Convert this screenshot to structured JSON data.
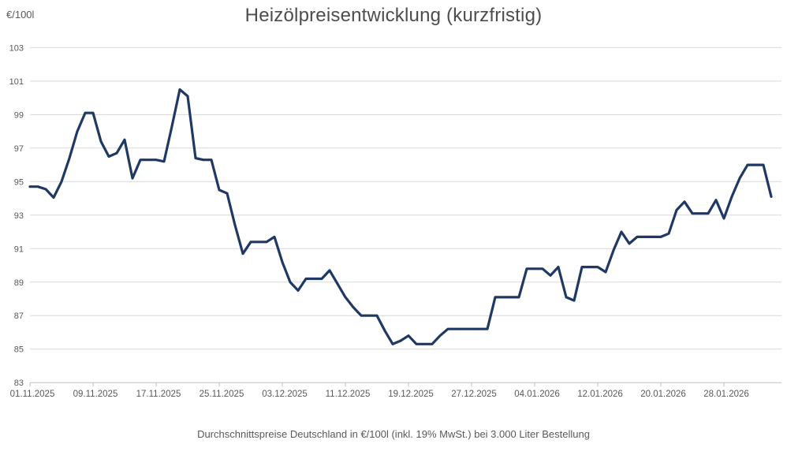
{
  "header": {
    "title": "Heizölpreisentwicklung (kurzfristig)",
    "y_axis_unit": "€/100l"
  },
  "footer": {
    "subtitle": "Durchschnittspreise Deutschland in €/100l (inkl. 19% MwSt.) bei 3.000 Liter Bestellung"
  },
  "chart_data": {
    "type": "line",
    "title": "Heizölpreisentwicklung (kurzfristig)",
    "ylabel": "€/100l",
    "x_start_date": "01.11.2025",
    "x_end_date": "03.02.2026",
    "x_interval": "daily",
    "x_tick_every_n_days": 8,
    "x_tick_labels": [
      "01.11.2025",
      "09.11.2025",
      "17.11.2025",
      "25.11.2025",
      "03.12.2025",
      "11.12.2025",
      "19.12.2025",
      "27.12.2025",
      "04.01.2026",
      "12.01.2026",
      "20.01.2026",
      "28.01.2026"
    ],
    "y_ticks": [
      103,
      101,
      99,
      97,
      95,
      93,
      91,
      89,
      87,
      85,
      83
    ],
    "ylim": [
      83,
      103
    ],
    "grid": "horizontal",
    "legend": "none",
    "values": [
      94.7,
      94.7,
      94.55,
      94.05,
      95.0,
      96.4,
      98.0,
      99.1,
      99.1,
      97.4,
      96.5,
      96.7,
      97.5,
      95.2,
      96.3,
      96.3,
      96.3,
      96.2,
      98.3,
      100.5,
      100.1,
      96.4,
      96.3,
      96.3,
      94.5,
      94.3,
      92.4,
      90.7,
      91.4,
      91.4,
      91.4,
      91.7,
      90.2,
      89.0,
      88.5,
      89.2,
      89.2,
      89.2,
      89.7,
      88.9,
      88.1,
      87.5,
      87.0,
      87.0,
      87.0,
      86.1,
      85.3,
      85.5,
      85.8,
      85.3,
      85.3,
      85.3,
      85.8,
      86.2,
      86.2,
      86.2,
      86.2,
      86.2,
      86.2,
      88.1,
      88.1,
      88.1,
      88.1,
      89.8,
      89.8,
      89.8,
      89.4,
      89.9,
      88.1,
      87.9,
      89.9,
      89.9,
      89.9,
      89.6,
      90.9,
      92.0,
      91.3,
      91.7,
      91.7,
      91.7,
      91.7,
      91.9,
      93.3,
      93.8,
      93.1,
      93.1,
      93.1,
      93.9,
      92.8,
      94.1,
      95.2,
      96.0,
      96.0,
      96.0,
      94.1
    ],
    "colors": {
      "line": "#1f3864",
      "grid": "#d9d9d9",
      "axis": "#bfbfbf",
      "text": "#595959",
      "title_text": "#4d4d4d",
      "background": "#ffffff"
    }
  }
}
